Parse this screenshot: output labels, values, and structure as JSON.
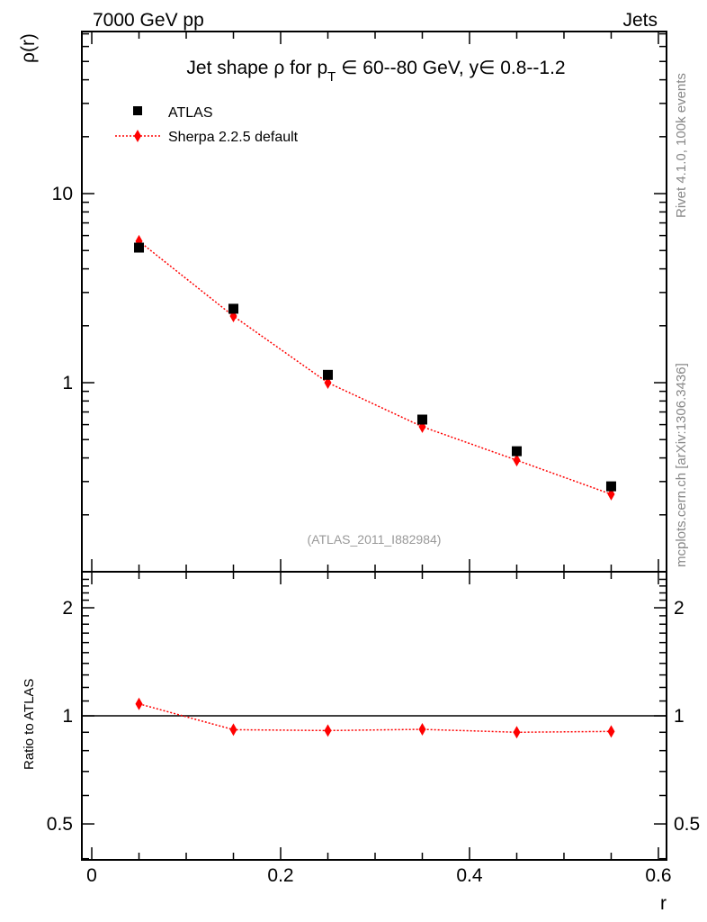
{
  "header": {
    "left": "7000 GeV pp",
    "right": "Jets"
  },
  "side_labels": {
    "rivet": "Rivet 4.1.0,  100k events",
    "mcplots": "mcplots.cern.ch [arXiv:1306.3436]"
  },
  "watermark": "(ATLAS_2011_I882984)",
  "chart_data": [
    {
      "type": "scatter",
      "title_parts": {
        "a": "Jet shape ",
        "rho": "ρ",
        "b": " for p",
        "sub": "T",
        "c": " ∈ 60--80 GeV, y",
        "d": "∈ 0.8--1.2"
      },
      "ylabel": "ρ(r)",
      "yscale": "log",
      "ylim": [
        0.1,
        72
      ],
      "xlim": [
        -0.0105,
        0.6086
      ],
      "y_ticks": [
        {
          "v": 1,
          "label": "1"
        },
        {
          "v": 10,
          "label": "10"
        }
      ],
      "legend_position": "top-left",
      "x": [
        0.05,
        0.15,
        0.25,
        0.35,
        0.45,
        0.55
      ],
      "series": [
        {
          "name": "ATLAS",
          "marker": "square",
          "color": "#000000",
          "values": [
            5.18,
            2.46,
            1.1,
            0.638,
            0.434,
            0.283
          ]
        },
        {
          "name": "Sherpa 2.2.5 default",
          "marker": "diamond",
          "line": "dotted",
          "color": "#ff0000",
          "values": [
            5.6,
            2.25,
            1.0,
            0.585,
            0.389,
            0.257
          ]
        }
      ]
    },
    {
      "type": "line",
      "ylabel": "Ratio to ATLAS",
      "xlabel": "r",
      "yscale": "log",
      "ylim": [
        0.397,
        2.52
      ],
      "xlim": [
        -0.0105,
        0.6086
      ],
      "x_ticks": [
        {
          "v": 0,
          "label": "0"
        },
        {
          "v": 0.2,
          "label": "0.2"
        },
        {
          "v": 0.4,
          "label": "0.4"
        },
        {
          "v": 0.6,
          "label": "0.6"
        }
      ],
      "y_ticks": [
        {
          "v": 0.5,
          "label": "0.5"
        },
        {
          "v": 1,
          "label": "1"
        },
        {
          "v": 2,
          "label": "2"
        }
      ],
      "x": [
        0.05,
        0.15,
        0.25,
        0.35,
        0.45,
        0.55
      ],
      "series": [
        {
          "name": "Sherpa 2.2.5 default",
          "color": "#ff0000",
          "values": [
            1.08,
            0.915,
            0.91,
            0.917,
            0.9,
            0.905
          ],
          "errors": [
            0.018,
            0.018,
            0.022,
            0.025,
            0.025,
            0.022
          ]
        }
      ]
    }
  ]
}
